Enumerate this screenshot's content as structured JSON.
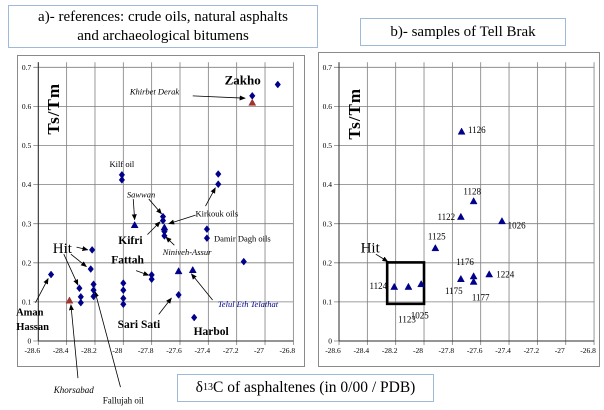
{
  "titles": {
    "panel_a_line1": "a)- references: crude oils, natural asphalts",
    "panel_a_line2": "and archaeological bitumens",
    "panel_b": "b)- samples of Tell Brak"
  },
  "xaxis": {
    "delta": "δ",
    "sup": "13",
    "rest": "C of asphaltenes (in 0/00 / PDB)"
  },
  "colors": {
    "marker_blue": "#00008B",
    "marker_red": "#A0342F",
    "grid": "#7f7f7f",
    "axis": "#2b2b2b",
    "title_box_border": "#9fb9d8",
    "chart_box_border": "#8a8a8a",
    "annotation_navy": "#00008B"
  },
  "chart_data": [
    {
      "id": "a",
      "type": "scatter",
      "title": "a)- references: crude oils, natural asphalts and archaeological bitumens",
      "xlabel": "δ13C of asphaltenes (in 0/00 / PDB)",
      "ylabel": "Ts/Tm",
      "xlim": [
        -28.6,
        -26.8
      ],
      "ylim": [
        0,
        0.7
      ],
      "grid": true,
      "x_tick_values": [
        -28.6,
        -28.4,
        -28.2,
        -28,
        -27.8,
        -27.6,
        -27.4,
        -27.2,
        -27,
        -26.8
      ],
      "x_tick_labels": [
        "-28.6",
        "-28.4",
        "-28.2",
        "-28",
        "-27.8",
        "-27.6",
        "-27.4",
        "-27.2",
        "-27",
        "-26.8"
      ],
      "y_tick_values": [
        0,
        0.1,
        0.2,
        0.3,
        0.4,
        0.5,
        0.6,
        0.7
      ],
      "y_tick_labels": [
        "0",
        "0.1",
        "0.2",
        "0.3",
        "0.4",
        "0.5",
        "0.6",
        "0.7"
      ],
      "series": [
        {
          "name": "crude oils and natural asphalts",
          "marker": "diamond",
          "color": "#00008B",
          "points": [
            [
              -26.91,
              0.656
            ],
            [
              -27.09,
              0.627
            ],
            [
              -28.01,
              0.425
            ],
            [
              -28.01,
              0.412
            ],
            [
              -27.33,
              0.427
            ],
            [
              -27.33,
              0.401
            ],
            [
              -27.72,
              0.318
            ],
            [
              -27.72,
              0.308
            ],
            [
              -27.71,
              0.28
            ],
            [
              -27.71,
              0.269
            ],
            [
              -27.41,
              0.286
            ],
            [
              -27.41,
              0.263
            ],
            [
              -27.15,
              0.203
            ],
            [
              -28.51,
              0.17
            ],
            [
              -28.22,
              0.233
            ],
            [
              -28.23,
              0.184
            ],
            [
              -28.31,
              0.135
            ],
            [
              -28.3,
              0.113
            ],
            [
              -28.3,
              0.098
            ],
            [
              -28.21,
              0.145
            ],
            [
              -28.21,
              0.13
            ],
            [
              -28.21,
              0.114
            ],
            [
              -28.0,
              0.148
            ],
            [
              -28.0,
              0.13
            ],
            [
              -28.0,
              0.109
            ],
            [
              -28.0,
              0.094
            ],
            [
              -27.8,
              0.169
            ],
            [
              -27.8,
              0.158
            ],
            [
              -27.61,
              0.118
            ],
            [
              -27.5,
              0.06
            ]
          ]
        },
        {
          "name": "archaeological bitumens",
          "marker": "triangle",
          "color": "#00008B",
          "points": [
            [
              -27.92,
              0.297
            ],
            [
              -27.71,
              0.291
            ],
            [
              -27.61,
              0.179
            ],
            [
              -27.51,
              0.182
            ]
          ]
        },
        {
          "name": "archaeological bitumens (red)",
          "marker": "triangle",
          "color": "#A0342F",
          "points": [
            [
              -27.09,
              0.61
            ],
            [
              -28.38,
              0.104
            ]
          ]
        }
      ],
      "annotations": [
        {
          "text": "Zakho",
          "x": -27.03,
          "y": 0.668,
          "ha": "e",
          "fs": 13,
          "bold": true
        },
        {
          "text": "Khirbet Derak",
          "x": -27.78,
          "y": 0.638,
          "ha": "m",
          "fs": 8.5,
          "italic": true
        },
        {
          "text": "Kilf oil",
          "x": -28.01,
          "y": 0.452,
          "ha": "m",
          "fs": 8.5
        },
        {
          "text": "Sawwan",
          "x": -27.875,
          "y": 0.375,
          "ha": "m",
          "fs": 8.5,
          "italic": true
        },
        {
          "text": "Kirkouk oils",
          "x": -27.34,
          "y": 0.326,
          "ha": "m",
          "fs": 8.5
        },
        {
          "text": "Kifri",
          "x": -27.95,
          "y": 0.258,
          "ha": "m",
          "fs": 11.5,
          "bold": true
        },
        {
          "text": "Fattah",
          "x": -27.97,
          "y": 0.208,
          "ha": "m",
          "fs": 11.5,
          "bold": true
        },
        {
          "text": "Niniveh-Assur",
          "x": -27.55,
          "y": 0.228,
          "ha": "m",
          "fs": 8.5,
          "italic": true
        },
        {
          "text": "Damir Dagh oils",
          "x": -27.36,
          "y": 0.262,
          "ha": "s",
          "fs": 8.5
        },
        {
          "text": "Hit",
          "x": -28.43,
          "y": 0.238,
          "ha": "m",
          "fs": 15
        },
        {
          "text": "Aman",
          "x": -28.66,
          "y": 0.075,
          "ha": "m",
          "fs": 10.5,
          "bold": true
        },
        {
          "text": "Hassan",
          "x": -28.64,
          "y": 0.038,
          "ha": "m",
          "fs": 10.5,
          "bold": true
        },
        {
          "text": "Sari Sati",
          "x": -27.89,
          "y": 0.044,
          "ha": "m",
          "fs": 11.5,
          "bold": true
        },
        {
          "text": "Harbol",
          "x": -27.38,
          "y": 0.026,
          "ha": "m",
          "fs": 11.5,
          "bold": true
        },
        {
          "text": "Telul Eth Telathat",
          "x": -27.12,
          "y": 0.094,
          "ha": "m",
          "fs": 8.5,
          "italic": true,
          "color": "#00008B"
        },
        {
          "text": "Khorsabad",
          "x": -28.35,
          "y": -0.125,
          "ha": "m",
          "fs": 9,
          "italic": true
        },
        {
          "text": "Fallujah oil",
          "x": -28.0,
          "y": -0.152,
          "ha": "m",
          "fs": 9
        }
      ],
      "arrows": [
        [
          -27.51,
          0.627,
          -27.14,
          0.621
        ],
        [
          -27.93,
          0.363,
          -27.92,
          0.31
        ],
        [
          -27.82,
          0.363,
          -27.73,
          0.325
        ],
        [
          -27.42,
          0.345,
          -27.35,
          0.392
        ],
        [
          -27.49,
          0.322,
          -27.68,
          0.3
        ],
        [
          -27.83,
          0.272,
          -27.74,
          0.305
        ],
        [
          -27.91,
          0.18,
          -27.82,
          0.168
        ],
        [
          -27.64,
          0.245,
          -27.7,
          0.266
        ],
        [
          -28.33,
          0.24,
          -28.25,
          0.233
        ],
        [
          -28.37,
          0.222,
          -28.26,
          0.19
        ],
        [
          -28.42,
          0.222,
          -28.32,
          0.143
        ],
        [
          -28.62,
          0.098,
          -28.53,
          0.16
        ],
        [
          -27.75,
          0.068,
          -27.66,
          0.11
        ],
        [
          -27.37,
          0.105,
          -27.52,
          0.172
        ],
        [
          -28.32,
          -0.095,
          -28.37,
          0.093
        ],
        [
          -28.02,
          -0.118,
          -28.2,
          0.127
        ]
      ]
    },
    {
      "id": "b",
      "type": "scatter",
      "title": "b)- samples of Tell Brak",
      "xlabel": "δ13C of asphaltenes (in 0/00 / PDB)",
      "ylabel": "Ts/Tm",
      "xlim": [
        -28.6,
        -26.8
      ],
      "ylim": [
        0,
        0.7
      ],
      "grid": true,
      "x_tick_values": [
        -28.6,
        -28.4,
        -28.2,
        -28,
        -27.8,
        -27.6,
        -27.4,
        -27.2,
        -27,
        -26.8
      ],
      "x_tick_labels": [
        "-28.6",
        "-28.4",
        "-28.2",
        "-28",
        "-27.8",
        "-27.6",
        "-27.4",
        "-27.2",
        "-27",
        "-26.8"
      ],
      "y_tick_values": [
        0,
        0.1,
        0.2,
        0.3,
        0.4,
        0.5,
        0.6,
        0.7
      ],
      "y_tick_labels": [
        "0",
        "0.1",
        "0.2",
        "0.3",
        "0.4",
        "0.5",
        "0.6",
        "0.7"
      ],
      "series": [
        {
          "name": "Tell Brak bitumen samples",
          "marker": "triangle",
          "color": "#00008B",
          "points": [
            [
              -27.735,
              0.536
            ],
            [
              -27.74,
              0.318
            ],
            [
              -27.65,
              0.358
            ],
            [
              -27.45,
              0.307
            ],
            [
              -27.92,
              0.238
            ],
            [
              -28.21,
              0.139
            ],
            [
              -28.11,
              0.139
            ],
            [
              -28.02,
              0.146
            ],
            [
              -27.74,
              0.159
            ],
            [
              -27.65,
              0.166
            ],
            [
              -27.65,
              0.152
            ],
            [
              -27.54,
              0.171
            ]
          ]
        }
      ],
      "annotations": [
        {
          "text": "Hit",
          "x": -28.38,
          "y": 0.24,
          "ha": "m",
          "fs": 15
        },
        {
          "text": "1126",
          "x": -27.69,
          "y": 0.54,
          "ha": "s",
          "fs": 9
        },
        {
          "text": "1128",
          "x": -27.66,
          "y": 0.383,
          "ha": "m",
          "fs": 9
        },
        {
          "text": "1122",
          "x": -27.78,
          "y": 0.318,
          "ha": "e",
          "fs": 9
        },
        {
          "text": "1026",
          "x": -27.41,
          "y": 0.296,
          "ha": "s",
          "fs": 9
        },
        {
          "text": "1125",
          "x": -27.91,
          "y": 0.268,
          "ha": "m",
          "fs": 9
        },
        {
          "text": "1124",
          "x": -28.26,
          "y": 0.141,
          "ha": "e",
          "fs": 9
        },
        {
          "text": "1123",
          "x": -28.12,
          "y": 0.055,
          "ha": "m",
          "fs": 9
        },
        {
          "text": "1025",
          "x": -28.03,
          "y": 0.066,
          "ha": "m",
          "fs": 9
        },
        {
          "text": "1175",
          "x": -27.79,
          "y": 0.128,
          "ha": "m",
          "fs": 9
        },
        {
          "text": "1176",
          "x": -27.71,
          "y": 0.202,
          "ha": "m",
          "fs": 9
        },
        {
          "text": "1177",
          "x": -27.6,
          "y": 0.112,
          "ha": "m",
          "fs": 9
        },
        {
          "text": "1224",
          "x": -27.49,
          "y": 0.17,
          "ha": "s",
          "fs": 9
        }
      ],
      "arrows": [
        [
          -28.34,
          0.222,
          -28.255,
          0.203
        ]
      ],
      "highlight_box": {
        "x1": -28.26,
        "y1": 0.095,
        "x2": -28.0,
        "y2": 0.201
      }
    }
  ]
}
